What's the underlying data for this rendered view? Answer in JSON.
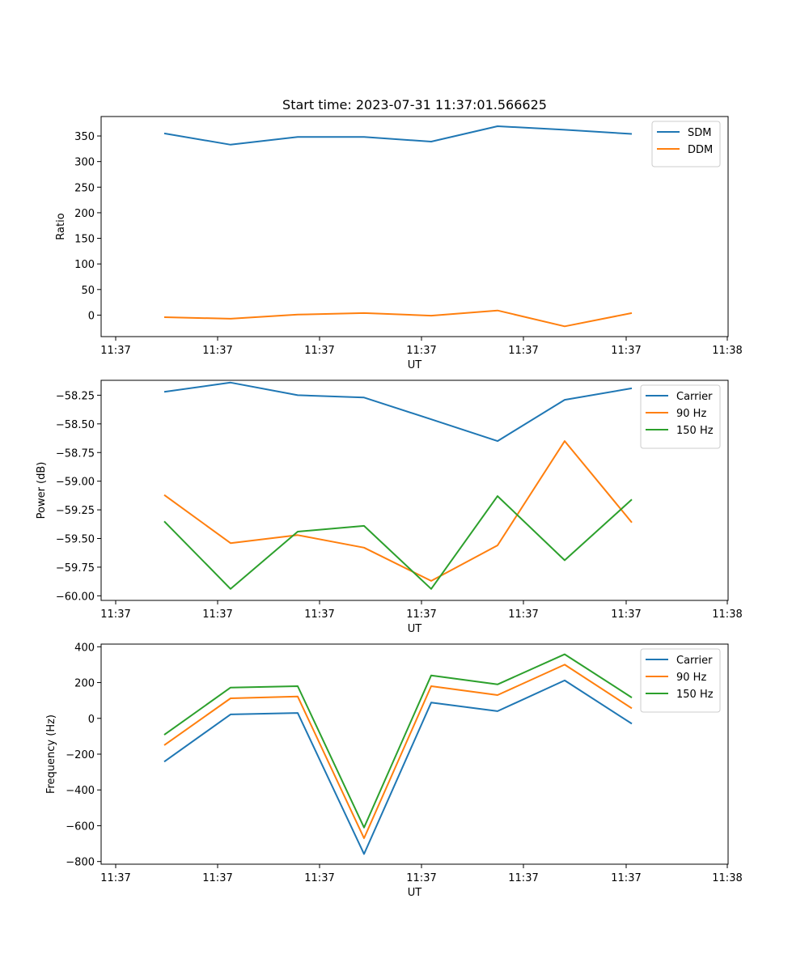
{
  "chart_data": [
    {
      "type": "line",
      "title": "Start time: 2023-07-31 11:37:01.566625",
      "xlabel": "UT",
      "ylabel": "Ratio",
      "x_tick_labels": [
        "11:37",
        "11:37",
        "11:37",
        "11:37",
        "11:37",
        "11:37",
        "11:38"
      ],
      "yticks": [
        0,
        50,
        100,
        150,
        200,
        250,
        300,
        350
      ],
      "y_tick_labels": [
        "0",
        "50",
        "100",
        "150",
        "200",
        "250",
        "300",
        "350"
      ],
      "ylim": [
        -42,
        388
      ],
      "legend": "top-right",
      "series": [
        {
          "name": "SDM",
          "color": "#1f77b4",
          "values": [
            355,
            333,
            348,
            348,
            339,
            369,
            362,
            354
          ]
        },
        {
          "name": "DDM",
          "color": "#ff7f0e",
          "values": [
            -4,
            -7,
            1,
            4,
            -1,
            9,
            -22,
            4
          ]
        }
      ]
    },
    {
      "type": "line",
      "title": "",
      "xlabel": "UT",
      "ylabel": "Power (dB)",
      "x_tick_labels": [
        "11:37",
        "11:37",
        "11:37",
        "11:37",
        "11:37",
        "11:37",
        "11:38"
      ],
      "yticks": [
        -60.0,
        -59.75,
        -59.5,
        -59.25,
        -59.0,
        -58.75,
        -58.5,
        -58.25
      ],
      "y_tick_labels": [
        "−60.00",
        "−59.75",
        "−59.50",
        "−59.25",
        "−59.00",
        "−58.75",
        "−58.50",
        "−58.25"
      ],
      "ylim": [
        -60.04,
        -58.12
      ],
      "legend": "top-right",
      "series": [
        {
          "name": "Carrier",
          "color": "#1f77b4",
          "values": [
            -58.22,
            -58.14,
            -58.25,
            -58.27,
            -58.46,
            -58.65,
            -58.29,
            -58.19
          ]
        },
        {
          "name": "90 Hz",
          "color": "#ff7f0e",
          "values": [
            -59.12,
            -59.54,
            -59.47,
            -59.58,
            -59.87,
            -59.56,
            -58.65,
            -59.36
          ]
        },
        {
          "name": "150 Hz",
          "color": "#2ca02c",
          "values": [
            -59.35,
            -59.94,
            -59.44,
            -59.39,
            -59.94,
            -59.13,
            -59.69,
            -59.16
          ]
        }
      ]
    },
    {
      "type": "line",
      "title": "",
      "xlabel": "UT",
      "ylabel": "Frequency (Hz)",
      "x_tick_labels": [
        "11:37",
        "11:37",
        "11:37",
        "11:37",
        "11:37",
        "11:37",
        "11:38"
      ],
      "yticks": [
        -800,
        -600,
        -400,
        -200,
        0,
        200,
        400
      ],
      "y_tick_labels": [
        "−800",
        "−600",
        "−400",
        "−200",
        "0",
        "200",
        "400"
      ],
      "ylim": [
        -815,
        415
      ],
      "legend": "top-right",
      "series": [
        {
          "name": "Carrier",
          "color": "#1f77b4",
          "values": [
            -242,
            22,
            30,
            -758,
            88,
            40,
            212,
            -30
          ]
        },
        {
          "name": "90 Hz",
          "color": "#ff7f0e",
          "values": [
            -150,
            112,
            122,
            -670,
            180,
            130,
            300,
            56
          ]
        },
        {
          "name": "150 Hz",
          "color": "#2ca02c",
          "values": [
            -92,
            172,
            180,
            -610,
            240,
            190,
            358,
            116
          ]
        }
      ]
    }
  ]
}
